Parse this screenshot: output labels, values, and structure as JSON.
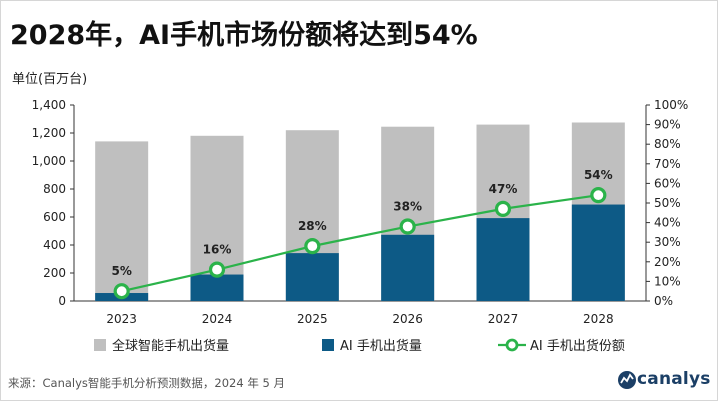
{
  "header": {
    "title": "2028年，AI手机市场份额将达到54%",
    "unit": "单位(百万台)"
  },
  "footer": {
    "source": "来源：Canalys智能手机分析预测数据，2024 年 5 月",
    "logo_text": "canalys"
  },
  "colors": {
    "total_bar": "#bfbfbf",
    "ai_bar": "#0d5a86",
    "share_line": "#2bb34a"
  },
  "chart_data": {
    "type": "bar",
    "categories": [
      "2023",
      "2024",
      "2025",
      "2026",
      "2027",
      "2028"
    ],
    "series": [
      {
        "name": "全球智能手机出货量",
        "type": "bar",
        "axis": "left",
        "values": [
          1140,
          1180,
          1220,
          1245,
          1260,
          1275
        ]
      },
      {
        "name": "AI 手机出货量",
        "type": "bar",
        "axis": "left",
        "values": [
          57,
          189,
          342,
          473,
          592,
          689
        ]
      },
      {
        "name": "AI 手机出货份额",
        "type": "line",
        "axis": "right",
        "values": [
          5,
          16,
          28,
          38,
          47,
          54
        ],
        "labels": [
          "5%",
          "16%",
          "28%",
          "38%",
          "47%",
          "54%"
        ]
      }
    ],
    "left_axis": {
      "min": 0,
      "max": 1400,
      "step": 200,
      "ticks": [
        "0",
        "200",
        "400",
        "600",
        "800",
        "1,000",
        "1,200",
        "1,400"
      ]
    },
    "right_axis": {
      "min": 0,
      "max": 100,
      "step": 10,
      "ticks": [
        "0%",
        "10%",
        "20%",
        "30%",
        "40%",
        "50%",
        "60%",
        "70%",
        "80%",
        "90%",
        "100%"
      ]
    },
    "legend_position": "bottom",
    "grid": false
  }
}
